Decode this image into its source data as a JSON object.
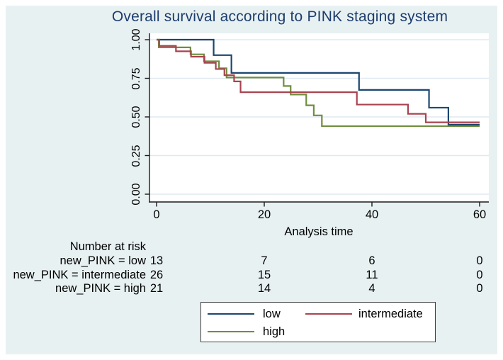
{
  "title": "Overall survival according to PINK staging system",
  "colors": {
    "background": "#e8f1f2",
    "plot_background": "#ffffff",
    "title": "#1d3d6d",
    "grid": "#dfeaf0",
    "axis": "#1a1a1a",
    "low": "#1a476f",
    "intermediate": "#a8434f",
    "high": "#6e8e3e"
  },
  "chart_data": {
    "type": "line",
    "subtype": "kaplan-meier-step",
    "title": "Overall survival according to PINK staging system",
    "xlabel": "Analysis time",
    "ylabel": "",
    "xlim": [
      0,
      60
    ],
    "ylim": [
      0.0,
      1.0
    ],
    "grid": "horizontal",
    "legend_position": "bottom-center",
    "x_ticks": [
      0,
      20,
      40,
      60
    ],
    "x_tick_labels": [
      "0",
      "20",
      "40",
      "60"
    ],
    "y_ticks": [
      1.0,
      0.75,
      0.5,
      0.25,
      0.0
    ],
    "y_tick_labels": [
      "1.00",
      "0.75",
      "0.50",
      "0.25",
      "0.00"
    ],
    "series": [
      {
        "name": "low",
        "color": "#1a476f",
        "steps": [
          [
            0,
            1.0
          ],
          [
            10.6,
            1.0
          ],
          [
            10.6,
            0.9
          ],
          [
            13.9,
            0.9
          ],
          [
            13.9,
            0.785
          ],
          [
            37.6,
            0.785
          ],
          [
            37.6,
            0.675
          ],
          [
            50.6,
            0.675
          ],
          [
            50.6,
            0.56
          ],
          [
            54.2,
            0.56
          ],
          [
            54.2,
            0.45
          ],
          [
            60,
            0.45
          ]
        ]
      },
      {
        "name": "intermediate",
        "color": "#a8434f",
        "steps": [
          [
            0,
            1.0
          ],
          [
            0.5,
            1.0
          ],
          [
            0.5,
            0.96
          ],
          [
            3.6,
            0.96
          ],
          [
            3.6,
            0.925
          ],
          [
            6.4,
            0.925
          ],
          [
            6.4,
            0.89
          ],
          [
            8.9,
            0.89
          ],
          [
            8.9,
            0.85
          ],
          [
            11.0,
            0.85
          ],
          [
            11.0,
            0.81
          ],
          [
            12.6,
            0.81
          ],
          [
            12.6,
            0.77
          ],
          [
            14.4,
            0.77
          ],
          [
            14.4,
            0.73
          ],
          [
            15.6,
            0.73
          ],
          [
            15.6,
            0.66
          ],
          [
            37.2,
            0.66
          ],
          [
            37.2,
            0.58
          ],
          [
            46.7,
            0.58
          ],
          [
            46.7,
            0.52
          ],
          [
            50.0,
            0.52
          ],
          [
            50.0,
            0.465
          ],
          [
            60,
            0.465
          ]
        ]
      },
      {
        "name": "high",
        "color": "#6e8e3e",
        "steps": [
          [
            0,
            1.0
          ],
          [
            0.4,
            1.0
          ],
          [
            0.4,
            0.95
          ],
          [
            6.3,
            0.95
          ],
          [
            6.3,
            0.905
          ],
          [
            8.8,
            0.905
          ],
          [
            8.8,
            0.86
          ],
          [
            11.6,
            0.86
          ],
          [
            11.6,
            0.815
          ],
          [
            13.0,
            0.815
          ],
          [
            13.0,
            0.755
          ],
          [
            23.6,
            0.755
          ],
          [
            23.6,
            0.7
          ],
          [
            24.9,
            0.7
          ],
          [
            24.9,
            0.645
          ],
          [
            27.8,
            0.645
          ],
          [
            27.8,
            0.575
          ],
          [
            29.2,
            0.575
          ],
          [
            29.2,
            0.51
          ],
          [
            30.7,
            0.51
          ],
          [
            30.7,
            0.44
          ],
          [
            60,
            0.44
          ]
        ]
      }
    ],
    "risk_table": {
      "title": "Number at risk",
      "times": [
        0,
        20,
        40,
        60
      ],
      "rows": [
        {
          "label": "new_PINK = low",
          "values": [
            13,
            7,
            6,
            0
          ]
        },
        {
          "label": "new_PINK = intermediate",
          "values": [
            26,
            15,
            11,
            0
          ]
        },
        {
          "label": "new_PINK = high",
          "values": [
            21,
            14,
            4,
            0
          ]
        }
      ]
    }
  },
  "legend": {
    "items": [
      {
        "label": "low",
        "color": "#1a476f"
      },
      {
        "label": "intermediate",
        "color": "#a8434f"
      },
      {
        "label": "high",
        "color": "#6e8e3e"
      }
    ]
  }
}
